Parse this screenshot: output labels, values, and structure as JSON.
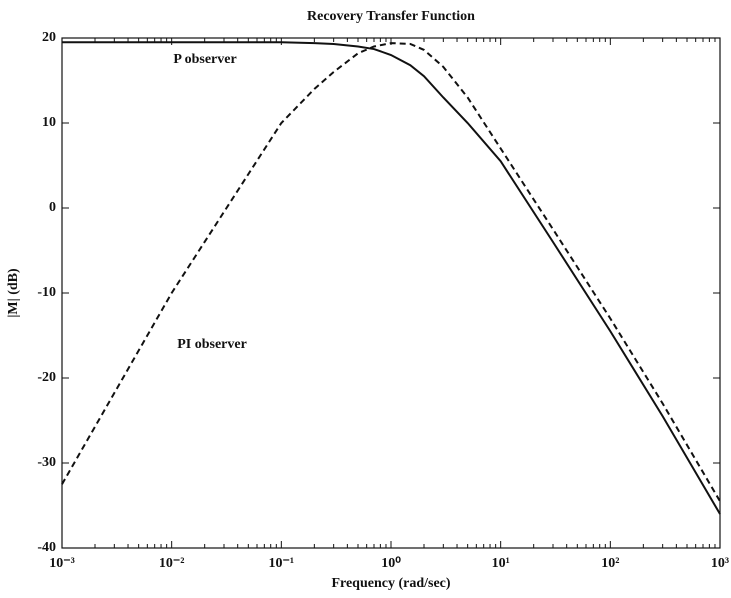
{
  "chart_data": {
    "type": "line",
    "title": "Recovery Transfer Function",
    "xlabel": "Frequency (rad/sec)",
    "ylabel": "|M| (dB)",
    "xscale": "log",
    "x": [
      0.001,
      0.01,
      0.1,
      0.2,
      0.3,
      0.5,
      0.7,
      1,
      1.5,
      2,
      3,
      5,
      10,
      30,
      100,
      300,
      1000
    ],
    "series": [
      {
        "name": "P observer",
        "color": "#111111",
        "linestyle": "solid",
        "values": [
          19.5,
          19.5,
          19.5,
          19.4,
          19.3,
          19,
          18.7,
          18,
          16.8,
          15.5,
          13,
          10,
          5.5,
          -4,
          -14.5,
          -24.5,
          -36
        ]
      },
      {
        "name": "PI observer",
        "color": "#111111",
        "linestyle": "dashed",
        "values": [
          -32.5,
          -10,
          10,
          14,
          16,
          18.2,
          19,
          19.4,
          19.3,
          18.6,
          16.6,
          13,
          7,
          -2.5,
          -13,
          -23,
          -34.5
        ]
      }
    ],
    "xlim": [
      0.001,
      1000
    ],
    "xticks": [
      {
        "value": 0.001,
        "label": "10⁻³"
      },
      {
        "value": 0.01,
        "label": "10⁻²"
      },
      {
        "value": 0.1,
        "label": "10⁻¹"
      },
      {
        "value": 1,
        "label": "10⁰"
      },
      {
        "value": 10,
        "label": "10¹"
      },
      {
        "value": 100,
        "label": "10²"
      },
      {
        "value": 1000,
        "label": "10³"
      }
    ],
    "ylim": [
      -40,
      20
    ],
    "yticks": [
      20,
      10,
      0,
      -10,
      -20,
      -30,
      -40
    ],
    "grid": false
  }
}
